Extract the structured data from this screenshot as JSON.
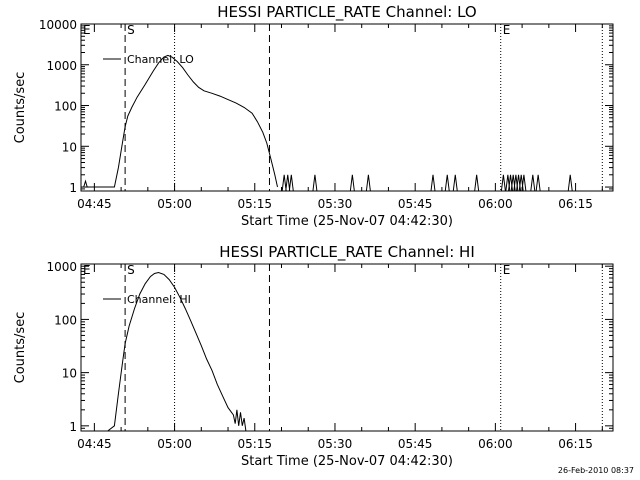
{
  "footer": {
    "date": "26-Feb-2010 08:37"
  },
  "chart_data": [
    {
      "type": "line",
      "title": "HESSI PARTICLE_RATE Channel: LO",
      "xlabel": "Start Time (25-Nov-07 04:42:30)",
      "ylabel": "Counts/sec",
      "y_scale": "log",
      "xlim": [
        "04:42:30",
        "06:22:00"
      ],
      "ylim": [
        0.8,
        10000
      ],
      "x_ticks": [
        "04:45",
        "05:00",
        "05:15",
        "05:30",
        "05:45",
        "06:00",
        "06:15"
      ],
      "y_ticks": [
        "1",
        "10",
        "100",
        "1000",
        "10000"
      ],
      "markers": [
        {
          "label": "S",
          "time": "04:50:45",
          "style": "dashed"
        },
        {
          "label": "",
          "time": "05:00:00",
          "style": "dotted"
        },
        {
          "label": "",
          "time": "05:17:45",
          "style": "dashed"
        },
        {
          "label": "E",
          "time": "06:01:00",
          "style": "dotted"
        },
        {
          "label": "",
          "time": "06:20:00",
          "style": "dotted"
        }
      ],
      "corner_label": "E",
      "series": [
        {
          "name": "Channel: LO",
          "points": [
            [
              "04:43:00",
              1
            ],
            [
              "04:43:20",
              1.4
            ],
            [
              "04:43:40",
              1
            ],
            [
              "04:48:45",
              1
            ],
            [
              "04:49:30",
              3
            ],
            [
              "04:50:15",
              12
            ],
            [
              "04:50:45",
              30
            ],
            [
              "04:51:15",
              55
            ],
            [
              "04:52:00",
              90
            ],
            [
              "04:53:00",
              160
            ],
            [
              "04:54:30",
              330
            ],
            [
              "04:56:00",
              700
            ],
            [
              "04:57:00",
              1100
            ],
            [
              "04:58:00",
              1550
            ],
            [
              "04:58:45",
              1700
            ],
            [
              "04:59:30",
              1550
            ],
            [
              "05:00:30",
              1200
            ],
            [
              "05:01:30",
              850
            ],
            [
              "05:02:30",
              560
            ],
            [
              "05:03:30",
              380
            ],
            [
              "05:04:30",
              280
            ],
            [
              "05:05:30",
              230
            ],
            [
              "05:07:00",
              200
            ],
            [
              "05:08:30",
              170
            ],
            [
              "05:10:00",
              140
            ],
            [
              "05:11:30",
              115
            ],
            [
              "05:13:00",
              90
            ],
            [
              "05:14:30",
              65
            ],
            [
              "05:15:30",
              40
            ],
            [
              "05:16:30",
              22
            ],
            [
              "05:17:15",
              12
            ],
            [
              "05:18:00",
              5
            ],
            [
              "05:18:45",
              2
            ],
            [
              "05:19:15",
              1
            ]
          ],
          "noise_spikes": [
            "05:20:30",
            "05:21:10",
            "05:21:50",
            "05:26:15",
            "05:33:15",
            "05:36:15",
            "05:48:20",
            "05:51:00",
            "05:52:30",
            "05:56:30",
            "06:01:30",
            "06:02:20",
            "06:02:50",
            "06:03:20",
            "06:03:50",
            "06:04:20",
            "06:04:50",
            "06:05:20",
            "06:07:00",
            "06:08:00",
            "06:14:00"
          ]
        }
      ]
    },
    {
      "type": "line",
      "title": "HESSI PARTICLE_RATE Channel: HI",
      "xlabel": "Start Time (25-Nov-07 04:42:30)",
      "ylabel": "Counts/sec",
      "y_scale": "log",
      "xlim": [
        "04:42:30",
        "06:22:00"
      ],
      "ylim": [
        0.8,
        1100
      ],
      "x_ticks": [
        "04:45",
        "05:00",
        "05:15",
        "05:30",
        "05:45",
        "06:00",
        "06:15"
      ],
      "y_ticks": [
        "1",
        "10",
        "100",
        "1000"
      ],
      "markers": [
        {
          "label": "S",
          "time": "04:50:45",
          "style": "dashed"
        },
        {
          "label": "",
          "time": "05:00:00",
          "style": "dotted"
        },
        {
          "label": "",
          "time": "05:17:45",
          "style": "dashed"
        },
        {
          "label": "E",
          "time": "06:01:00",
          "style": "dotted"
        },
        {
          "label": "",
          "time": "06:20:00",
          "style": "dotted"
        }
      ],
      "corner_label": "E",
      "series": [
        {
          "name": "Channel: HI",
          "points": [
            [
              "04:47:30",
              0.8
            ],
            [
              "04:48:45",
              1
            ],
            [
              "04:49:30",
              4
            ],
            [
              "04:50:15",
              15
            ],
            [
              "04:50:45",
              35
            ],
            [
              "04:51:30",
              75
            ],
            [
              "04:52:30",
              160
            ],
            [
              "04:53:30",
              300
            ],
            [
              "04:54:30",
              470
            ],
            [
              "04:55:30",
              640
            ],
            [
              "04:56:15",
              730
            ],
            [
              "04:57:00",
              760
            ],
            [
              "04:58:00",
              700
            ],
            [
              "04:59:00",
              560
            ],
            [
              "05:00:00",
              400
            ],
            [
              "05:01:00",
              260
            ],
            [
              "05:02:00",
              160
            ],
            [
              "05:03:00",
              95
            ],
            [
              "05:04:00",
              55
            ],
            [
              "05:05:00",
              32
            ],
            [
              "05:06:00",
              18
            ],
            [
              "05:07:00",
              11
            ],
            [
              "05:08:00",
              6
            ],
            [
              "05:09:00",
              3.6
            ],
            [
              "05:10:00",
              2.2
            ],
            [
              "05:11:00",
              1.6
            ],
            [
              "05:11:20",
              1.1
            ],
            [
              "05:11:40",
              2
            ],
            [
              "05:12:00",
              1
            ],
            [
              "05:12:20",
              1.8
            ],
            [
              "05:12:40",
              1
            ],
            [
              "05:13:00",
              1.4
            ],
            [
              "05:13:20",
              0.8
            ]
          ]
        }
      ]
    }
  ]
}
